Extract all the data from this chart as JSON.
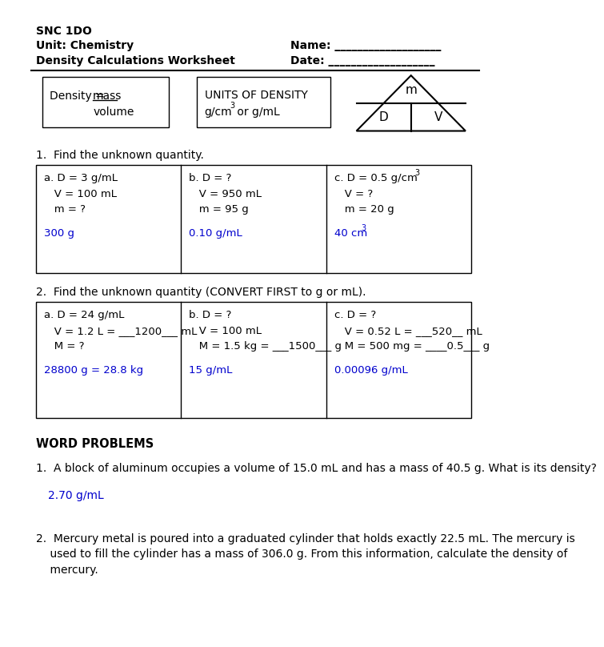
{
  "title_line1": "SNC 1DO",
  "title_line2": "Unit: Chemistry",
  "title_line3": "Density Calculations Worksheet",
  "name_label": "Name: ___________________",
  "date_label": "Date: ___________________",
  "units_line1": "UNITS OF DENSITY",
  "q1_header": "1.  Find the unknown quantity.",
  "q2_header": "2.  Find the unknown quantity (CONVERT FIRST to g or mL).",
  "word_problems_header": "WORD PROBLEMS",
  "wp1": "1.  A block of aluminum occupies a volume of 15.0 mL and has a mass of 40.5 g. What is its density?",
  "wp1_answer": "2.70 g/mL",
  "wp2_line1": "2.  Mercury metal is poured into a graduated cylinder that holds exactly 22.5 mL. The mercury is",
  "wp2_line2": "    used to fill the cylinder has a mass of 306.0 g. From this information, calculate the density of",
  "wp2_line3": "    mercury.",
  "blue": "#0000CD",
  "black": "#000000"
}
